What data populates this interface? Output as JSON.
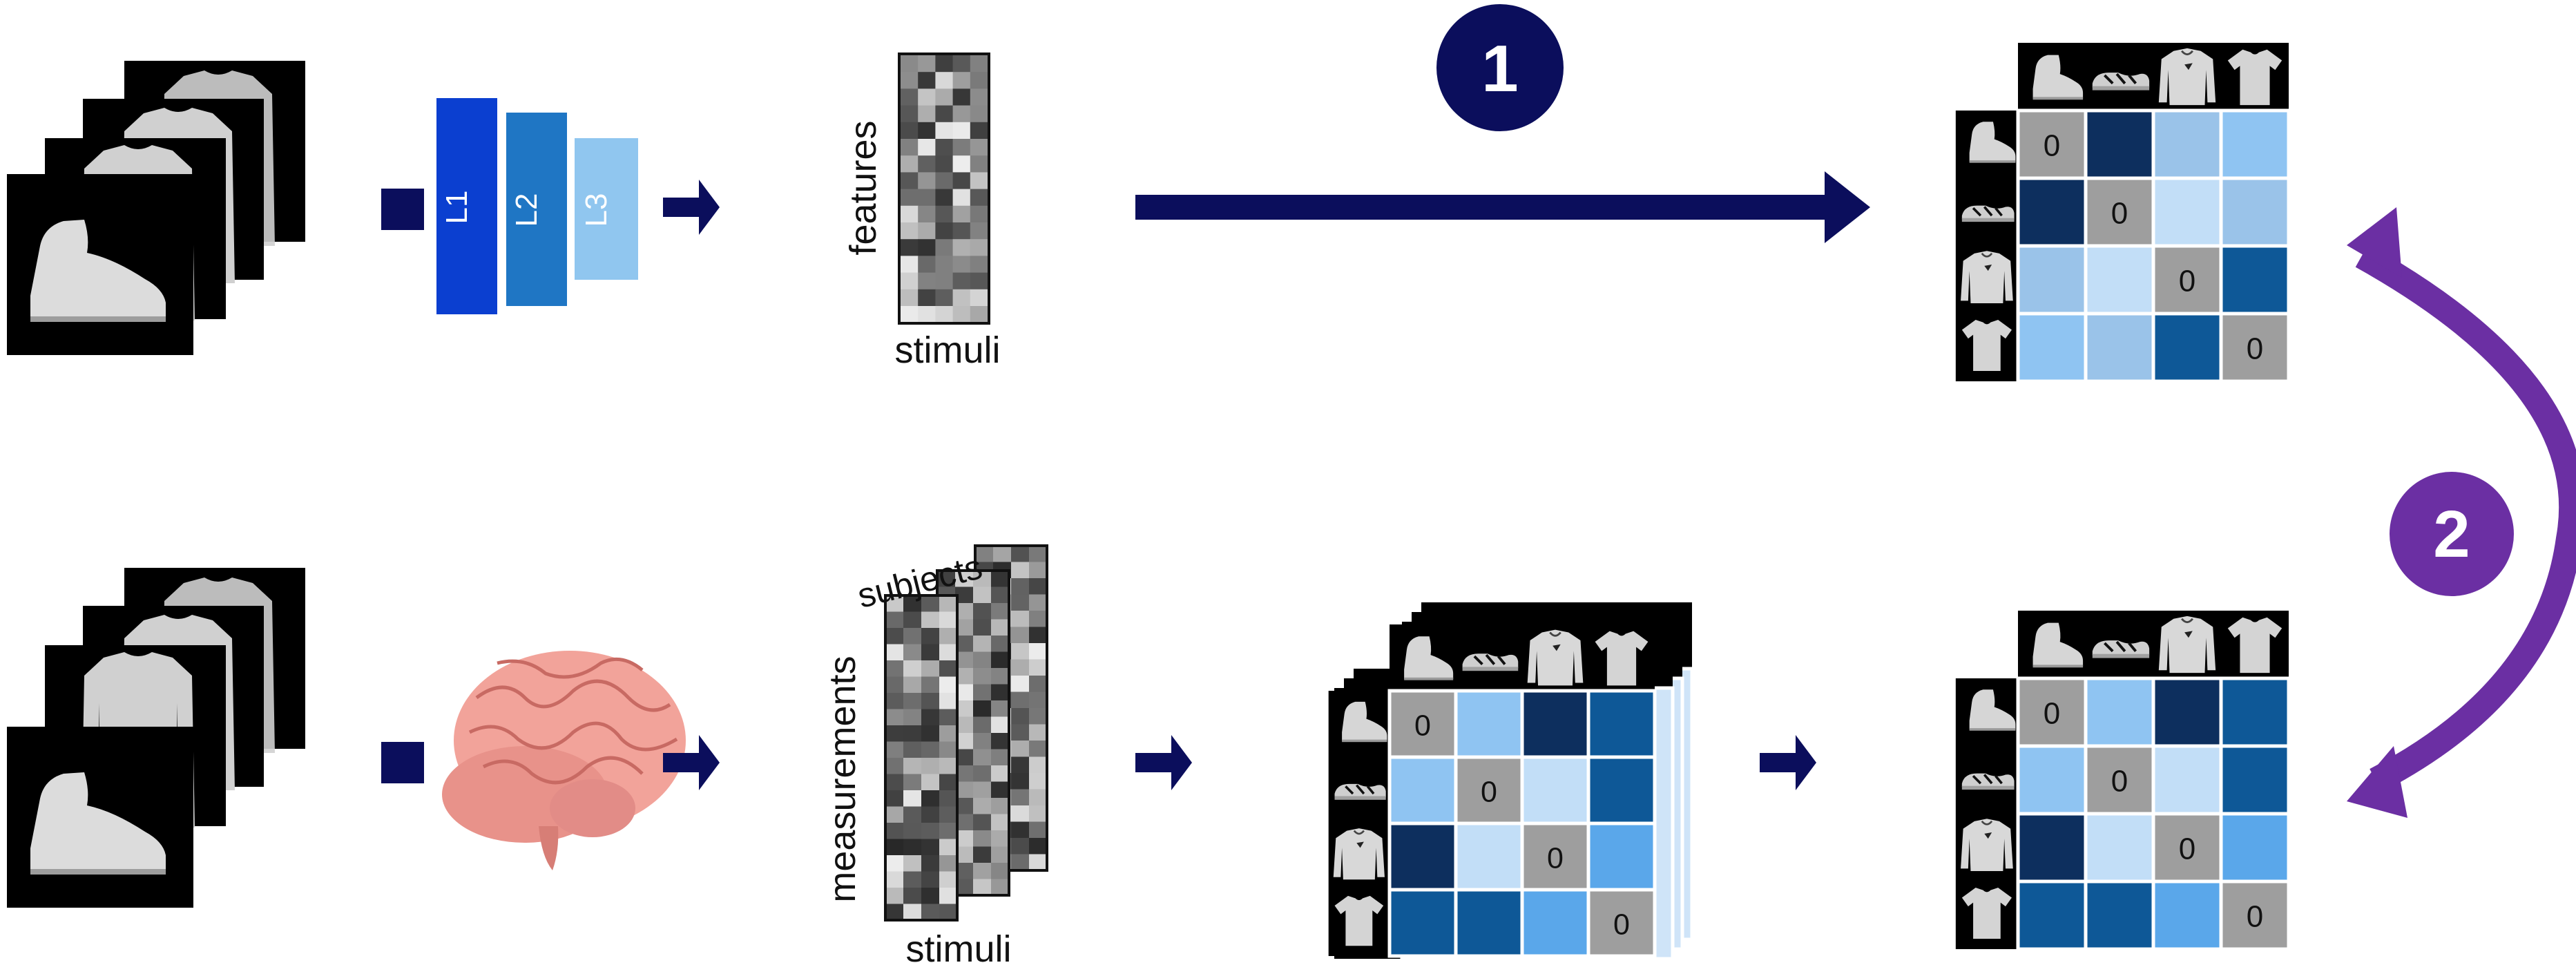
{
  "labels": {
    "features": "features",
    "stimuli_top": "stimuli",
    "measurements": "measurements",
    "subjects": "subjects",
    "stimuli_bottom": "stimuli"
  },
  "layers": [
    "L1",
    "L2",
    "L3"
  ],
  "steps": {
    "one": "1",
    "two": "2"
  },
  "rdm_zero": "0",
  "colors": {
    "arrow_navy": "#0b0e5c",
    "badge_navy": "#0b0e5c",
    "purple": "#6b2fa3",
    "layer1": "#0b3fd0",
    "layer2": "#1f76c4",
    "layer3": "#90c6ef",
    "rdm_palette": [
      "#0d2f5e",
      "#0e5897",
      "#9ac3e9",
      "#8fc4f2",
      "#c2def7",
      "#5aa7ea",
      "#9e9e9e"
    ]
  },
  "icons": [
    "boot-icon",
    "sandal-icon",
    "pullover-icon",
    "tshirt-icon",
    "brain-icon"
  ]
}
